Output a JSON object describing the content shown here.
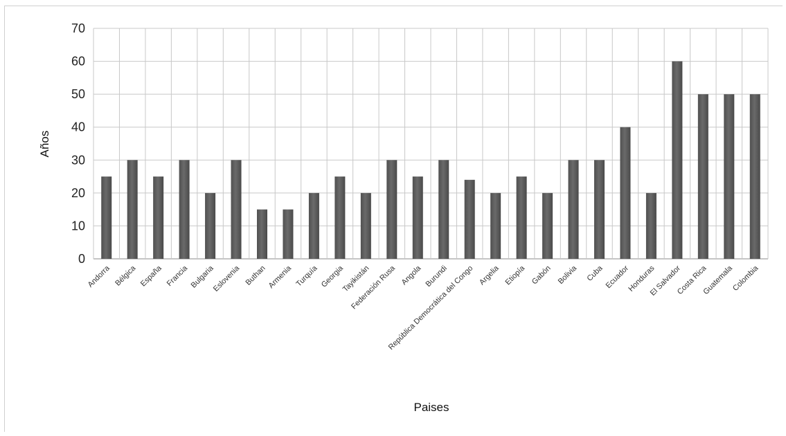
{
  "chart_data": {
    "type": "bar",
    "title": "",
    "xlabel": "Paises",
    "ylabel": "Años",
    "ylim": [
      0,
      70
    ],
    "yticks": [
      0,
      10,
      20,
      30,
      40,
      50,
      60,
      70
    ],
    "grid": true,
    "legend": "none",
    "bar_color": "#6a6a6a",
    "categories": [
      "Andorra",
      "Bélgica",
      "España",
      "Francia",
      "Bulgaria",
      "Eslovenia",
      "Buthan",
      "Armenia",
      "Turquía",
      "Georgia",
      "Tayikistán",
      "Federación Rusa",
      "Angola",
      "Burundi",
      "República Democrática del Congo",
      "Argelia",
      "Etiopía",
      "Gabón",
      "Bolivia",
      "Cuba",
      "Ecuador",
      "Honduras",
      "El Salvador",
      "Costa Rica",
      "Guatemala",
      "Colombia"
    ],
    "values": [
      25,
      30,
      25,
      30,
      20,
      30,
      15,
      15,
      20,
      25,
      20,
      30,
      25,
      30,
      24,
      20,
      25,
      20,
      30,
      30,
      40,
      20,
      60,
      50,
      50,
      50
    ]
  }
}
